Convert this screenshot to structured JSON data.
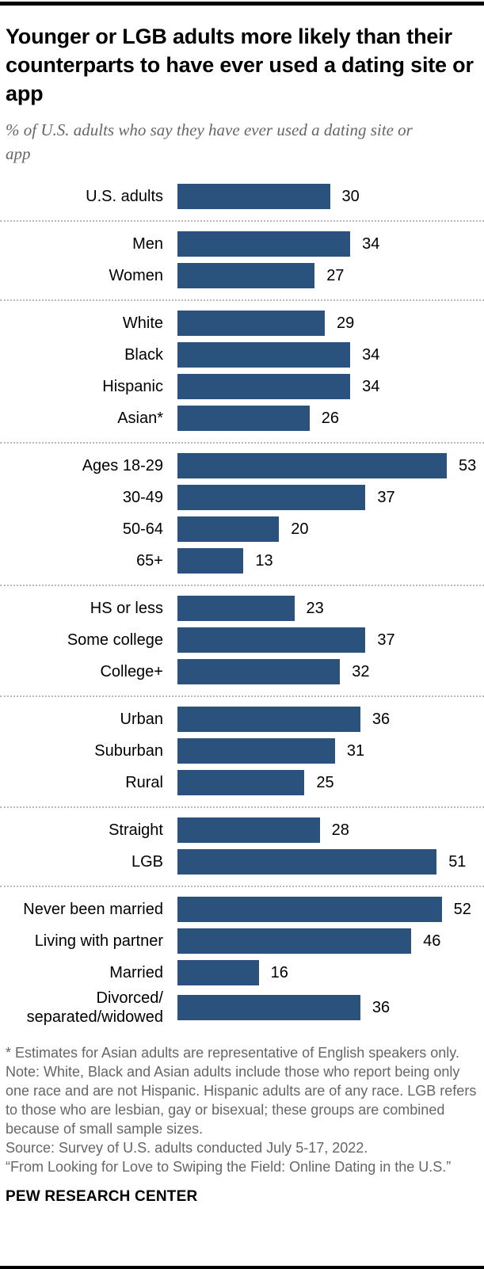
{
  "header": {
    "title": "Younger or LGB adults more likely than their counterparts to have ever used a dating site or app",
    "subtitle": "% of U.S. adults who say they have ever used a dating site or app"
  },
  "chart_data": {
    "type": "bar",
    "orientation": "horizontal",
    "title": "Younger or LGB adults more likely than their counterparts to have ever used a dating site or app",
    "subtitle": "% of U.S. adults who say they have ever used a dating site or app",
    "value_unit": "%",
    "xlim": [
      0,
      53
    ],
    "bar_color": "#2A527D",
    "grid": false,
    "legend": "none",
    "groups": [
      {
        "name": "overall",
        "rows": [
          {
            "label": "U.S. adults",
            "value": 30
          }
        ]
      },
      {
        "name": "gender",
        "rows": [
          {
            "label": "Men",
            "value": 34
          },
          {
            "label": "Women",
            "value": 27
          }
        ]
      },
      {
        "name": "race-ethnicity",
        "rows": [
          {
            "label": "White",
            "value": 29
          },
          {
            "label": "Black",
            "value": 34
          },
          {
            "label": "Hispanic",
            "value": 34
          },
          {
            "label": "Asian*",
            "value": 26
          }
        ]
      },
      {
        "name": "age",
        "rows": [
          {
            "label": "Ages 18-29",
            "value": 53
          },
          {
            "label": "30-49",
            "value": 37
          },
          {
            "label": "50-64",
            "value": 20
          },
          {
            "label": "65+",
            "value": 13
          }
        ]
      },
      {
        "name": "education",
        "rows": [
          {
            "label": "HS or less",
            "value": 23
          },
          {
            "label": "Some college",
            "value": 37
          },
          {
            "label": "College+",
            "value": 32
          }
        ]
      },
      {
        "name": "community-type",
        "rows": [
          {
            "label": "Urban",
            "value": 36
          },
          {
            "label": "Suburban",
            "value": 31
          },
          {
            "label": "Rural",
            "value": 25
          }
        ]
      },
      {
        "name": "sexual-orientation",
        "rows": [
          {
            "label": "Straight",
            "value": 28
          },
          {
            "label": "LGB",
            "value": 51
          }
        ]
      },
      {
        "name": "marital-status",
        "rows": [
          {
            "label": "Never been married",
            "value": 52
          },
          {
            "label": "Living with partner",
            "value": 46
          },
          {
            "label": "Married",
            "value": 16
          },
          {
            "label": "Divorced/separated/widowed",
            "label_lines": [
              "Divorced/",
              "separated/widowed"
            ],
            "value": 36
          }
        ]
      }
    ]
  },
  "footnotes": [
    "* Estimates for Asian adults are representative of English speakers only.",
    "Note: White, Black and Asian adults include those who report being only one race and are not Hispanic. Hispanic adults are of any race. LGB refers to those who are lesbian, gay or bisexual; these groups are combined because of small sample sizes.",
    "Source: Survey of U.S. adults conducted July 5-17, 2022.",
    "“From Looking for Love to Swiping the Field: Online Dating in the U.S.”"
  ],
  "footer": {
    "brand": "PEW RESEARCH CENTER"
  }
}
